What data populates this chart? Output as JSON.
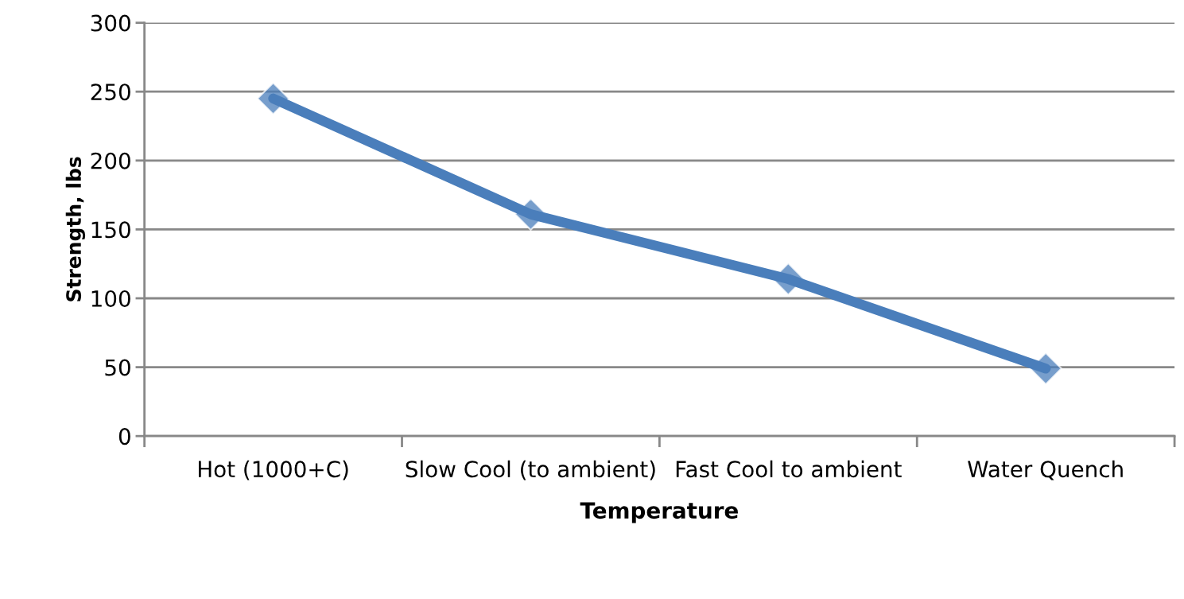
{
  "chart_data": {
    "type": "line",
    "xlabel": "Temperature",
    "ylabel": "Strength, lbs",
    "categories": [
      "Hot (1000+C)",
      "Slow Cool (to ambient)",
      "Fast Cool to ambient",
      "Water Quench"
    ],
    "series": [
      {
        "color": "#4a7ebb",
        "values": [
          245,
          161,
          114,
          49
        ]
      }
    ],
    "ylim": [
      0,
      300
    ],
    "yticks": [
      0,
      50,
      100,
      150,
      200,
      250,
      300
    ],
    "grid": "y",
    "legend": false,
    "marker": "diamond",
    "line_style": "solid"
  }
}
